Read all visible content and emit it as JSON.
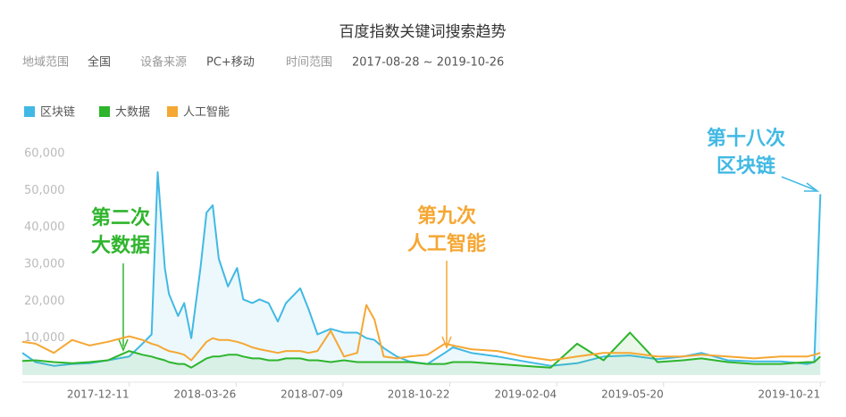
{
  "chart_data": {
    "type": "line",
    "title": "百度指数关键词搜索趋势",
    "filters": [
      {
        "label": "地域范围",
        "value": "全国"
      },
      {
        "label": "设备来源",
        "value": "PC+移动"
      },
      {
        "label": "时间范围",
        "value": "2017-08-28 ~ 2019-10-26"
      }
    ],
    "xlim": [
      "2017-08-28",
      "2019-10-26"
    ],
    "xticks": [
      "2017-12-11",
      "2018-03-26",
      "2018-07-09",
      "2018-10-22",
      "2019-02-04",
      "2019-05-20",
      "2019-10-21"
    ],
    "ylim": [
      0,
      60000
    ],
    "yticks": [
      {
        "value": 10000,
        "label": "10,000"
      },
      {
        "value": 20000,
        "label": "20,000"
      },
      {
        "value": 30000,
        "label": "30,000"
      },
      {
        "value": 40000,
        "label": "40,000"
      },
      {
        "value": 50000,
        "label": "50,000"
      },
      {
        "value": 60000,
        "label": "60,000"
      }
    ],
    "grid": false,
    "legend": "top-left",
    "x": [
      "2017-08-28",
      "2017-09-10",
      "2017-09-28",
      "2017-10-16",
      "2017-11-02",
      "2017-11-20",
      "2017-12-11",
      "2017-12-24",
      "2018-01-02",
      "2018-01-08",
      "2018-01-15",
      "2018-01-19",
      "2018-01-28",
      "2018-02-03",
      "2018-02-10",
      "2018-02-19",
      "2018-02-25",
      "2018-03-03",
      "2018-03-09",
      "2018-03-18",
      "2018-03-27",
      "2018-04-02",
      "2018-04-11",
      "2018-04-18",
      "2018-04-27",
      "2018-05-06",
      "2018-05-14",
      "2018-05-28",
      "2018-06-05",
      "2018-06-14",
      "2018-06-27",
      "2018-07-10",
      "2018-07-23",
      "2018-08-01",
      "2018-08-09",
      "2018-08-18",
      "2018-08-31",
      "2018-09-12",
      "2018-09-30",
      "2018-10-17",
      "2018-10-25",
      "2018-11-12",
      "2018-12-08",
      "2019-01-03",
      "2019-01-29",
      "2019-02-24",
      "2019-03-22",
      "2019-04-17",
      "2019-05-14",
      "2019-06-08",
      "2019-06-26",
      "2019-07-22",
      "2019-08-17",
      "2019-09-12",
      "2019-10-08",
      "2019-10-15",
      "2019-10-21"
    ],
    "series": [
      {
        "name": "区块链",
        "color": "#41b9e4",
        "values": [
          6000,
          3500,
          2500,
          3000,
          3200,
          4000,
          5000,
          8500,
          11000,
          55000,
          29000,
          22000,
          16000,
          19500,
          10000,
          29000,
          44000,
          46000,
          31500,
          24000,
          29000,
          20500,
          19500,
          20500,
          19500,
          14500,
          19500,
          23500,
          18000,
          11000,
          12500,
          11500,
          11500,
          10000,
          9500,
          7300,
          5000,
          3700,
          3000,
          6000,
          7500,
          6000,
          5000,
          3700,
          2500,
          3200,
          5000,
          5300,
          4300,
          5000,
          6000,
          4000,
          3700,
          3700,
          3000,
          3500,
          49000
        ]
      },
      {
        "name": "大数据",
        "color": "#2eb52c",
        "values": [
          3800,
          4000,
          3500,
          3200,
          3500,
          4000,
          6500,
          5500,
          5000,
          4500,
          4000,
          3500,
          3000,
          3000,
          2000,
          3500,
          4500,
          5000,
          5000,
          5500,
          5500,
          5000,
          4500,
          4500,
          4000,
          4000,
          4500,
          4500,
          4000,
          4000,
          3500,
          4000,
          3500,
          3500,
          3500,
          3500,
          3500,
          3500,
          3000,
          3000,
          3500,
          3500,
          3000,
          2500,
          2000,
          8500,
          4000,
          11500,
          3500,
          4000,
          4500,
          3500,
          3000,
          3000,
          3500,
          3500,
          5000
        ]
      },
      {
        "name": "人工智能",
        "color": "#f5a733",
        "values": [
          9000,
          8500,
          6000,
          9500,
          8000,
          9000,
          10500,
          9500,
          8500,
          8000,
          7000,
          6500,
          6000,
          5500,
          4000,
          7000,
          9000,
          10000,
          9500,
          9500,
          9000,
          8500,
          7500,
          7000,
          6500,
          6000,
          6500,
          6500,
          6000,
          6500,
          12000,
          5000,
          6000,
          19000,
          15000,
          5000,
          4500,
          5000,
          5500,
          8500,
          8000,
          7000,
          6500,
          5000,
          4000,
          5000,
          6000,
          6000,
          5000,
          5000,
          5500,
          5000,
          4500,
          5000,
          5000,
          5500,
          6000
        ]
      }
    ],
    "annotations": [
      {
        "lines": [
          "第二次",
          "大数据"
        ],
        "color": "#2eb52c"
      },
      {
        "lines": [
          "第九次",
          "人工智能"
        ],
        "color": "#f5a733"
      },
      {
        "lines": [
          "第十八次",
          "区块链"
        ],
        "color": "#41b9e4"
      }
    ]
  }
}
